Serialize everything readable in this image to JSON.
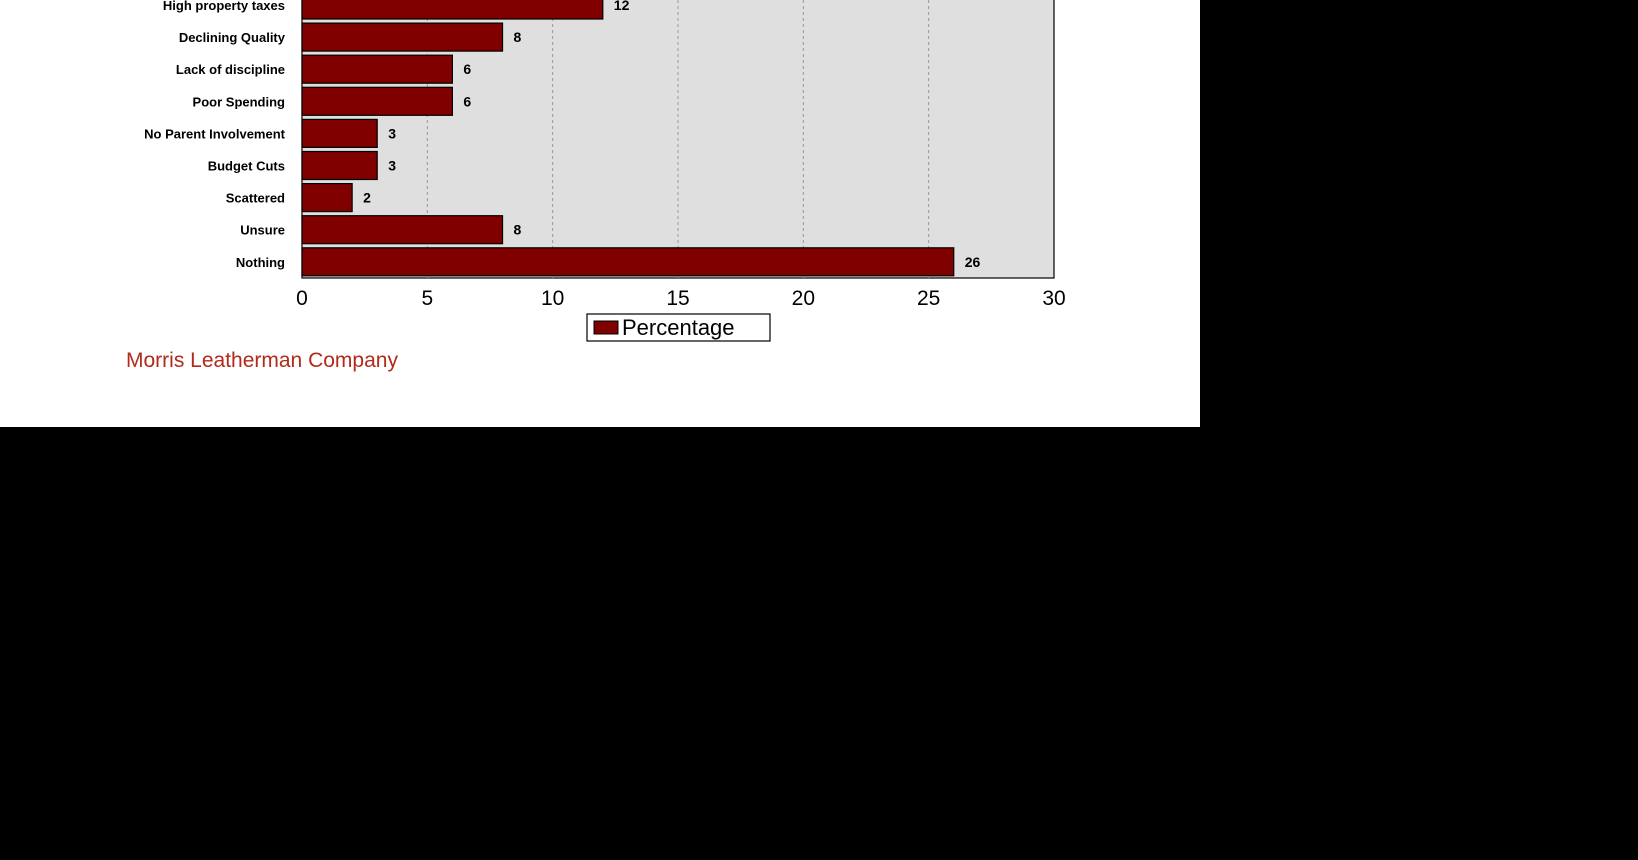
{
  "chart_data": {
    "type": "bar",
    "orientation": "horizontal",
    "categories": [
      "High property taxes",
      "Declining Quality",
      "Lack of discipline",
      "Poor Spending",
      "No Parent Involvement",
      "Budget Cuts",
      "Scattered",
      "Unsure",
      "Nothing"
    ],
    "series": [
      {
        "name": "Percentage",
        "values": [
          12,
          8,
          6,
          6,
          3,
          3,
          2,
          8,
          26
        ]
      }
    ],
    "xlim": [
      0,
      30
    ],
    "x_ticks": [
      "0",
      "5",
      "10",
      "15",
      "20",
      "25",
      "30"
    ],
    "grid": true,
    "legend_position": "bottom-center",
    "colors": {
      "bar": "#800000",
      "plot_background": "#dfdfdf",
      "gridline": "#999999"
    }
  },
  "footer": {
    "credit": "Morris Leatherman Company",
    "credit_color": "#b22a1a"
  }
}
